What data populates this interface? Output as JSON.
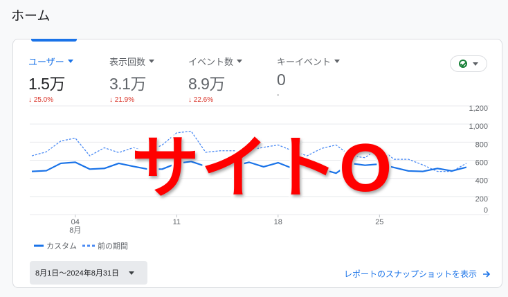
{
  "page_title": "ホーム",
  "metrics": [
    {
      "label": "ユーザー",
      "value": "1.5万",
      "delta": "↓ 25.0%",
      "active": true
    },
    {
      "label": "表示回数",
      "value": "3.1万",
      "delta": "↓ 21.9%"
    },
    {
      "label": "イベント数",
      "value": "8.9万",
      "delta": "↓ 22.6%"
    },
    {
      "label": "キーイベント",
      "value": "0",
      "delta": "-"
    }
  ],
  "status_icon": "check-circle-icon",
  "colors": {
    "accent": "#1a73e8",
    "negative": "#d93025",
    "status_ok": "#188038"
  },
  "chart_data": {
    "type": "line",
    "x_ticks": [
      {
        "day": 4,
        "label": "04",
        "sub": "8月"
      },
      {
        "day": 11,
        "label": "11"
      },
      {
        "day": 18,
        "label": "18"
      },
      {
        "day": 25,
        "label": "25"
      }
    ],
    "x": [
      1,
      2,
      3,
      4,
      5,
      6,
      7,
      8,
      9,
      10,
      11,
      12,
      13,
      14,
      15,
      16,
      17,
      18,
      19,
      20,
      21,
      22,
      23,
      24,
      25,
      26,
      27,
      28,
      29,
      30,
      31
    ],
    "y_ticks": [
      "1,200",
      "1,000",
      "800",
      "600",
      "400",
      "200",
      "0"
    ],
    "ylim": [
      0,
      1200
    ],
    "grid": true,
    "legend_position": "bottom-left",
    "series": [
      {
        "name": "カスタム",
        "style": "solid",
        "color": "#1a73e8",
        "values": [
          477,
          485,
          566,
          578,
          502,
          510,
          566,
          533,
          502,
          502,
          566,
          586,
          533,
          553,
          540,
          578,
          528,
          573,
          510,
          548,
          502,
          457,
          566,
          545,
          558,
          520,
          482,
          477,
          510,
          482,
          523
        ]
      },
      {
        "name": "前の期間",
        "style": "dashed",
        "color": "#4a8af4",
        "values": [
          649,
          693,
          812,
          845,
          649,
          738,
          685,
          738,
          693,
          769,
          903,
          921,
          688,
          705,
          705,
          713,
          743,
          769,
          705,
          649,
          731,
          769,
          649,
          629,
          738,
          611,
          611,
          548,
          477,
          477,
          566
        ]
      }
    ]
  },
  "date_range": "8月1日～2024年8月31日",
  "snapshot_link": "レポートのスナップショットを表示",
  "overlay_text": "サイトO"
}
